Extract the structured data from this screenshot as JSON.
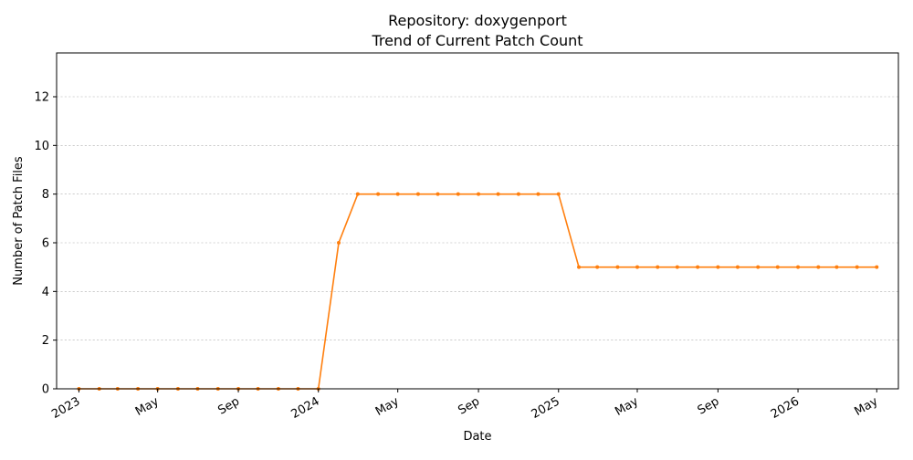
{
  "chart_data": {
    "type": "line",
    "title": "Repository: doxygenport",
    "subtitle": "Trend of Current Patch Count",
    "xlabel": "Date",
    "ylabel": "Number of Patch Files",
    "ylim": [
      0,
      13.8
    ],
    "xlim": [
      "2022-11-28",
      "2026-06-03"
    ],
    "y_ticks": [
      0,
      2,
      4,
      6,
      8,
      10,
      12
    ],
    "x_ticks": [
      {
        "date": "2023-01-01",
        "label": "2023"
      },
      {
        "date": "2023-05-01",
        "label": "May"
      },
      {
        "date": "2023-09-01",
        "label": "Sep"
      },
      {
        "date": "2024-01-01",
        "label": "2024"
      },
      {
        "date": "2024-05-01",
        "label": "May"
      },
      {
        "date": "2024-09-01",
        "label": "Sep"
      },
      {
        "date": "2025-01-01",
        "label": "2025"
      },
      {
        "date": "2025-05-01",
        "label": "May"
      },
      {
        "date": "2025-09-01",
        "label": "Sep"
      },
      {
        "date": "2026-01-01",
        "label": "2026"
      },
      {
        "date": "2026-05-01",
        "label": "May"
      }
    ],
    "grid": "y",
    "color": "#ff7f0e",
    "series": [
      {
        "x": [
          "2023-01-01",
          "2023-02-01",
          "2023-03-01",
          "2023-04-01",
          "2023-05-01",
          "2023-06-01",
          "2023-07-01",
          "2023-08-01",
          "2023-09-01",
          "2023-10-01",
          "2023-11-01",
          "2023-12-01",
          "2024-01-01",
          "2024-02-01",
          "2024-03-01",
          "2024-04-01",
          "2024-05-01",
          "2024-06-01",
          "2024-07-01",
          "2024-08-01",
          "2024-09-01",
          "2024-10-01",
          "2024-11-01",
          "2024-12-01",
          "2025-01-01",
          "2025-02-01",
          "2025-03-01",
          "2025-04-01",
          "2025-05-01",
          "2025-06-01",
          "2025-07-01",
          "2025-08-01",
          "2025-09-01",
          "2025-10-01",
          "2025-11-01",
          "2025-12-01",
          "2026-01-01",
          "2026-02-01",
          "2026-03-01",
          "2026-04-01",
          "2026-05-01"
        ],
        "values": [
          0,
          0,
          0,
          0,
          0,
          0,
          0,
          0,
          0,
          0,
          0,
          0,
          0,
          6,
          8,
          8,
          8,
          8,
          8,
          8,
          8,
          8,
          8,
          8,
          8,
          5,
          5,
          5,
          5,
          5,
          5,
          5,
          5,
          5,
          5,
          5,
          5,
          5,
          5,
          5,
          5
        ]
      }
    ]
  }
}
